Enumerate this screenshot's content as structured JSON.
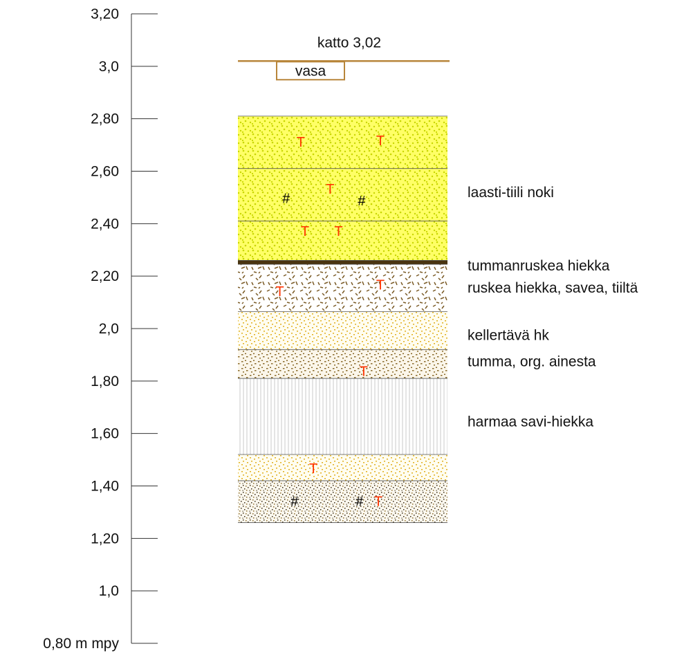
{
  "scale": {
    "ticks": [
      "3,20",
      "3,0",
      "2,80",
      "2,60",
      "2,40",
      "2,20",
      "2,0",
      "1,80",
      "1,60",
      "1,40",
      "1,20",
      "1,0",
      "0,80 m mpy"
    ],
    "min": 0.8,
    "max": 3.2,
    "step": 0.2
  },
  "roof": {
    "label": "katto 3,02",
    "level": 3.02,
    "color": "#b8863b",
    "beam_label": "vasa"
  },
  "layers": [
    {
      "top": 2.81,
      "bottom": 2.61,
      "pattern": "yellow"
    },
    {
      "top": 2.61,
      "bottom": 2.41,
      "pattern": "yellow"
    },
    {
      "top": 2.41,
      "bottom": 2.26,
      "pattern": "yellow"
    },
    {
      "top": 2.26,
      "bottom": 2.245,
      "pattern": "darkband"
    },
    {
      "top": 2.245,
      "bottom": 2.065,
      "pattern": "brownfleck"
    },
    {
      "top": 2.065,
      "bottom": 1.92,
      "pattern": "paleyellow"
    },
    {
      "top": 1.92,
      "bottom": 1.81,
      "pattern": "tanspeckle"
    },
    {
      "top": 1.81,
      "bottom": 1.52,
      "pattern": "grey"
    },
    {
      "top": 1.52,
      "bottom": 1.42,
      "pattern": "paleyellow"
    },
    {
      "top": 1.42,
      "bottom": 1.26,
      "pattern": "darkspeckle"
    }
  ],
  "annotations": [
    {
      "text": "laasti-tiili noki",
      "level": 2.52
    },
    {
      "text": "tummanruskea hiekka",
      "level": 2.24
    },
    {
      "text": "ruskea hiekka, savea, tiiltä",
      "level": 2.155
    },
    {
      "text": "kellertävä hk",
      "level": 1.975
    },
    {
      "text": "tumma, org. ainesta",
      "level": 1.875
    },
    {
      "text": "harmaa savi-hiekka",
      "level": 1.645
    }
  ],
  "markers": {
    "tile_symbol": "T",
    "soot_symbol": "#",
    "tile_color": "#ff3300",
    "soot_color": "#000000",
    "tiles": [
      {
        "rel": 0.3,
        "level": 2.715
      },
      {
        "rel": 0.68,
        "level": 2.72
      },
      {
        "rel": 0.44,
        "level": 2.535
      },
      {
        "rel": 0.32,
        "level": 2.375
      },
      {
        "rel": 0.48,
        "level": 2.375
      },
      {
        "rel": 0.2,
        "level": 2.145
      },
      {
        "rel": 0.68,
        "level": 2.17
      },
      {
        "rel": 0.6,
        "level": 1.84
      },
      {
        "rel": 0.36,
        "level": 1.47
      },
      {
        "rel": 0.67,
        "level": 1.345
      }
    ],
    "soot": [
      {
        "rel": 0.23,
        "level": 2.5
      },
      {
        "rel": 0.59,
        "level": 2.49
      },
      {
        "rel": 0.27,
        "level": 1.345
      },
      {
        "rel": 0.58,
        "level": 1.345
      }
    ]
  },
  "colors": {
    "yellow_bg": "#ffff66",
    "yellow_dot": "#c8d600",
    "dark_band": "#4a3410",
    "brown_fleck": "#7a5a25",
    "pale_yellow_dot": "#e0b020",
    "tan_dot": "#8a6a2a",
    "grey_line": "#c8c8c8",
    "dark_dot": "#3b2d14",
    "layer_border": "#555555",
    "axis": "#333333"
  }
}
